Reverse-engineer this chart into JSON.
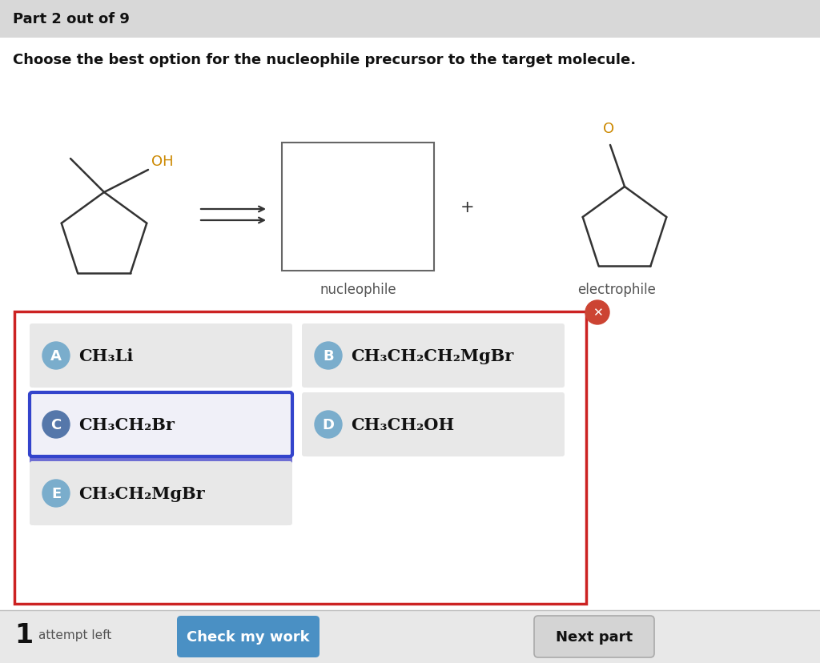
{
  "title_bar_text": "Part 2 out of 9",
  "question_text": "Choose the best option for the nucleophile precursor to the target molecule.",
  "nucleophile_label": "nucleophile",
  "electrophile_label": "electrophile",
  "options": [
    {
      "letter": "A",
      "formula": "CH₃Li",
      "selected": false,
      "row": 0,
      "col": 0
    },
    {
      "letter": "B",
      "formula": "CH₃CH₂CH₂MgBr",
      "selected": false,
      "row": 0,
      "col": 1
    },
    {
      "letter": "C",
      "formula": "CH₃CH₂Br",
      "selected": true,
      "row": 1,
      "col": 0
    },
    {
      "letter": "D",
      "formula": "CH₃CH₂OH",
      "selected": false,
      "row": 1,
      "col": 1
    },
    {
      "letter": "E",
      "formula": "CH₃CH₂MgBr",
      "selected": false,
      "row": 2,
      "col": 0
    }
  ],
  "title_bar_color": "#d8d8d8",
  "white_bg": "#ffffff",
  "option_bg": "#e8e8e8",
  "option_selected_border": "#3333cc",
  "btn_check_color": "#4a90c4",
  "btn_next_color": "#d4d4d4",
  "badge_color": "#7aadcc",
  "badge_selected_color": "#5577aa",
  "error_badge_color": "#cc4433",
  "check_btn_text": "Check my work",
  "next_btn_text": "Next part",
  "oh_color": "#cc8800",
  "o_color": "#cc8800",
  "label_color": "#555555",
  "mol_line_color": "#333333"
}
